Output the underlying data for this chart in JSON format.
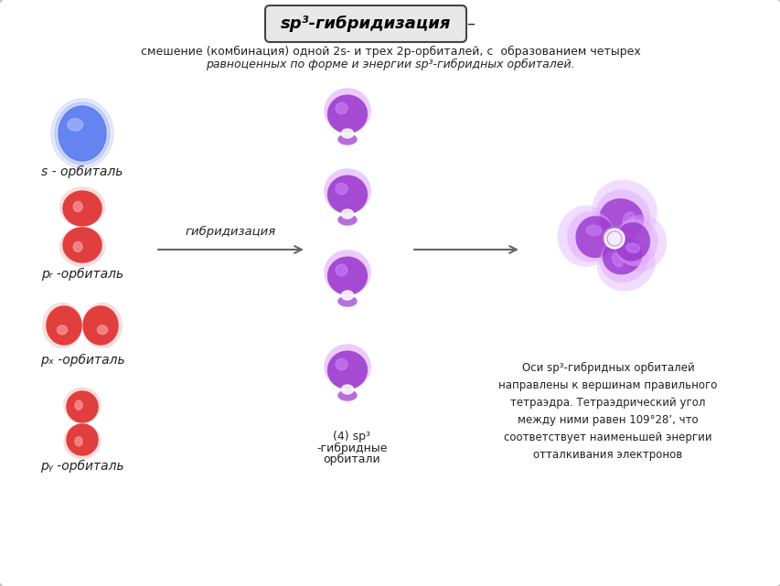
{
  "title": "sp³-гибридизация",
  "subtitle_line1": "смешение (комбинация) одной 2s- и трех 2p-орбиталей, с  образованием четырех",
  "subtitle_line2": "равноценных по форме и энергии sp³-гибридных орбиталей.",
  "label_s": "s - орбиталь",
  "label_pz": "pᵣ -орбиталь",
  "label_px": "pₓ -орбиталь",
  "label_py": "pᵧ -орбиталь",
  "arrow_label": "гибридизация",
  "hybrid_label_line1": "(4) sp³",
  "hybrid_label_line2": "-гибридные",
  "hybrid_label_line3": "орбитали",
  "right_text": "Оси sp³-гибридных орбиталей\nнаправлены к вершинам правильного\nтетраэдра. Тетраэдрический угол\nмежду ними равен 109°28’, что\nсоответствует наименьшей энергии\nотталкивания электронов",
  "s_color": "#5577ee",
  "s_highlight": "#aabbff",
  "p_color": "#dd2222",
  "p_highlight": "#ffaaaa",
  "h_color": "#9933cc",
  "h_highlight": "#cc88ff",
  "h_light": "#ddaaff",
  "text_color": "#222222",
  "arrow_color": "#666666",
  "bg_white": "#ffffff",
  "bg_gray": "#f0f0f2"
}
